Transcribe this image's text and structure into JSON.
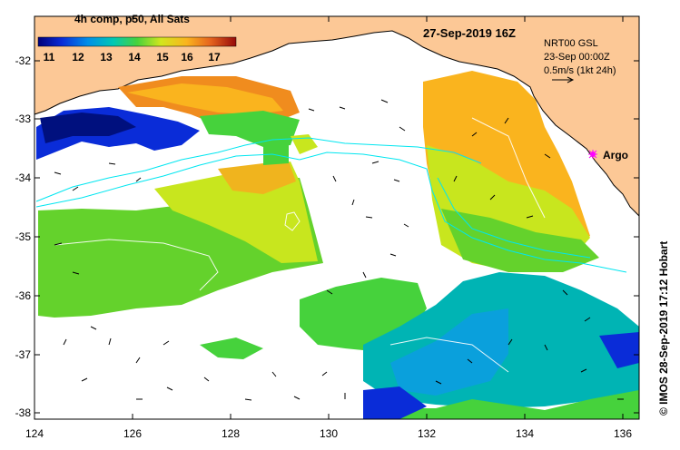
{
  "colorbar": {
    "label": "4h comp, p50, All Sats",
    "ticks": [
      "11",
      "12",
      "13",
      "14",
      "15",
      "16",
      "17"
    ]
  },
  "header": {
    "datetime": "27-Sep-2019 16Z",
    "nrt_line1": "NRT00 GSL",
    "nrt_line2": "23-Sep 00:00Z",
    "nrt_line3": "0.5m/s (1kt 24h)"
  },
  "axes": {
    "y_ticks": [
      "-32",
      "-33",
      "-34",
      "-35",
      "-36",
      "-37",
      "-38"
    ],
    "x_ticks": [
      "124",
      "126",
      "128",
      "130",
      "132",
      "134",
      "136"
    ]
  },
  "markers": {
    "argo_label": "Argo"
  },
  "credit": "© IMOS 28-Sep-2019 17:12 Hobart",
  "colors": {
    "land": "#fcc896",
    "contour": "#00e6f0",
    "argo": "#ff00ff"
  }
}
